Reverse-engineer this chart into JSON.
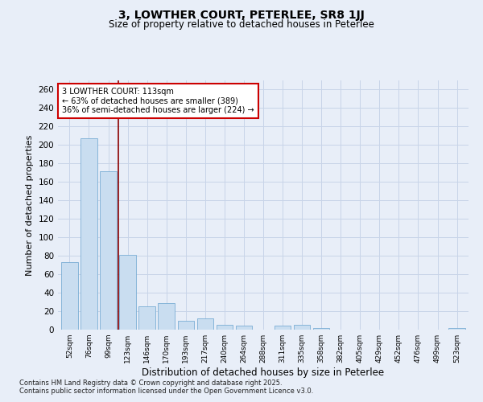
{
  "title": "3, LOWTHER COURT, PETERLEE, SR8 1JJ",
  "subtitle": "Size of property relative to detached houses in Peterlee",
  "xlabel": "Distribution of detached houses by size in Peterlee",
  "ylabel": "Number of detached properties",
  "bar_color": "#c9ddf0",
  "bar_edge_color": "#7aadd4",
  "grid_color": "#c8d4e8",
  "background_color": "#e8eef8",
  "categories": [
    "52sqm",
    "76sqm",
    "99sqm",
    "123sqm",
    "146sqm",
    "170sqm",
    "193sqm",
    "217sqm",
    "240sqm",
    "264sqm",
    "288sqm",
    "311sqm",
    "335sqm",
    "358sqm",
    "382sqm",
    "405sqm",
    "429sqm",
    "452sqm",
    "476sqm",
    "499sqm",
    "523sqm"
  ],
  "values": [
    73,
    207,
    172,
    81,
    25,
    29,
    10,
    12,
    5,
    4,
    0,
    4,
    5,
    2,
    0,
    0,
    0,
    0,
    0,
    0,
    2
  ],
  "ylim": [
    0,
    270
  ],
  "yticks": [
    0,
    20,
    40,
    60,
    80,
    100,
    120,
    140,
    160,
    180,
    200,
    220,
    240,
    260
  ],
  "vline_x": 2.5,
  "annotation_text": "3 LOWTHER COURT: 113sqm\n← 63% of detached houses are smaller (389)\n36% of semi-detached houses are larger (224) →",
  "annotation_box_color": "#ffffff",
  "annotation_box_edge": "#cc0000",
  "vline_color": "#8b0000",
  "footer_line1": "Contains HM Land Registry data © Crown copyright and database right 2025.",
  "footer_line2": "Contains public sector information licensed under the Open Government Licence v3.0."
}
